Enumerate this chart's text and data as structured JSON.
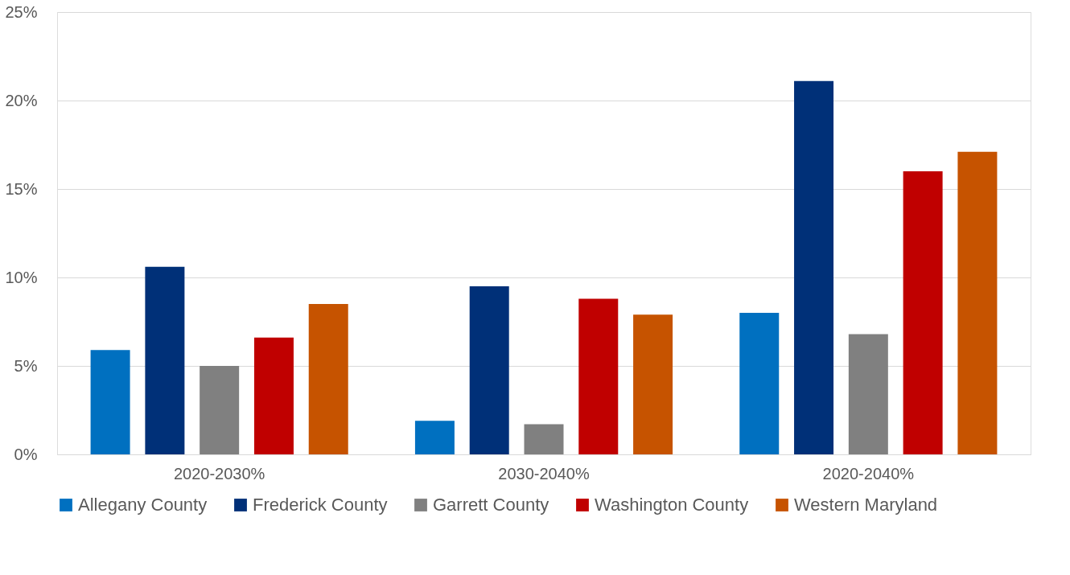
{
  "chart_data": {
    "type": "bar",
    "categories": [
      "2020-2030%",
      "2030-2040%",
      "2020-2040%"
    ],
    "series": [
      {
        "name": "Allegany County",
        "color": "#0070c0",
        "values": [
          5.9,
          1.9,
          8.0
        ]
      },
      {
        "name": "Frederick County",
        "color": "#003078",
        "values": [
          10.6,
          9.5,
          21.1
        ]
      },
      {
        "name": "Garrett County",
        "color": "#808080",
        "values": [
          5.0,
          1.7,
          6.8
        ]
      },
      {
        "name": "Washington County",
        "color": "#c00000",
        "values": [
          6.6,
          8.8,
          16.0
        ]
      },
      {
        "name": "Western Maryland",
        "color": "#c65300",
        "values": [
          8.5,
          7.9,
          17.1
        ]
      }
    ],
    "ylim": [
      0,
      25
    ],
    "yticks": [
      {
        "value": 0,
        "label": "0%"
      },
      {
        "value": 5,
        "label": "5%"
      },
      {
        "value": 10,
        "label": "10%"
      },
      {
        "value": 15,
        "label": "15%"
      },
      {
        "value": 20,
        "label": "20%"
      },
      {
        "value": 25,
        "label": "25%"
      }
    ],
    "grid": "y",
    "legend": "bottom"
  }
}
